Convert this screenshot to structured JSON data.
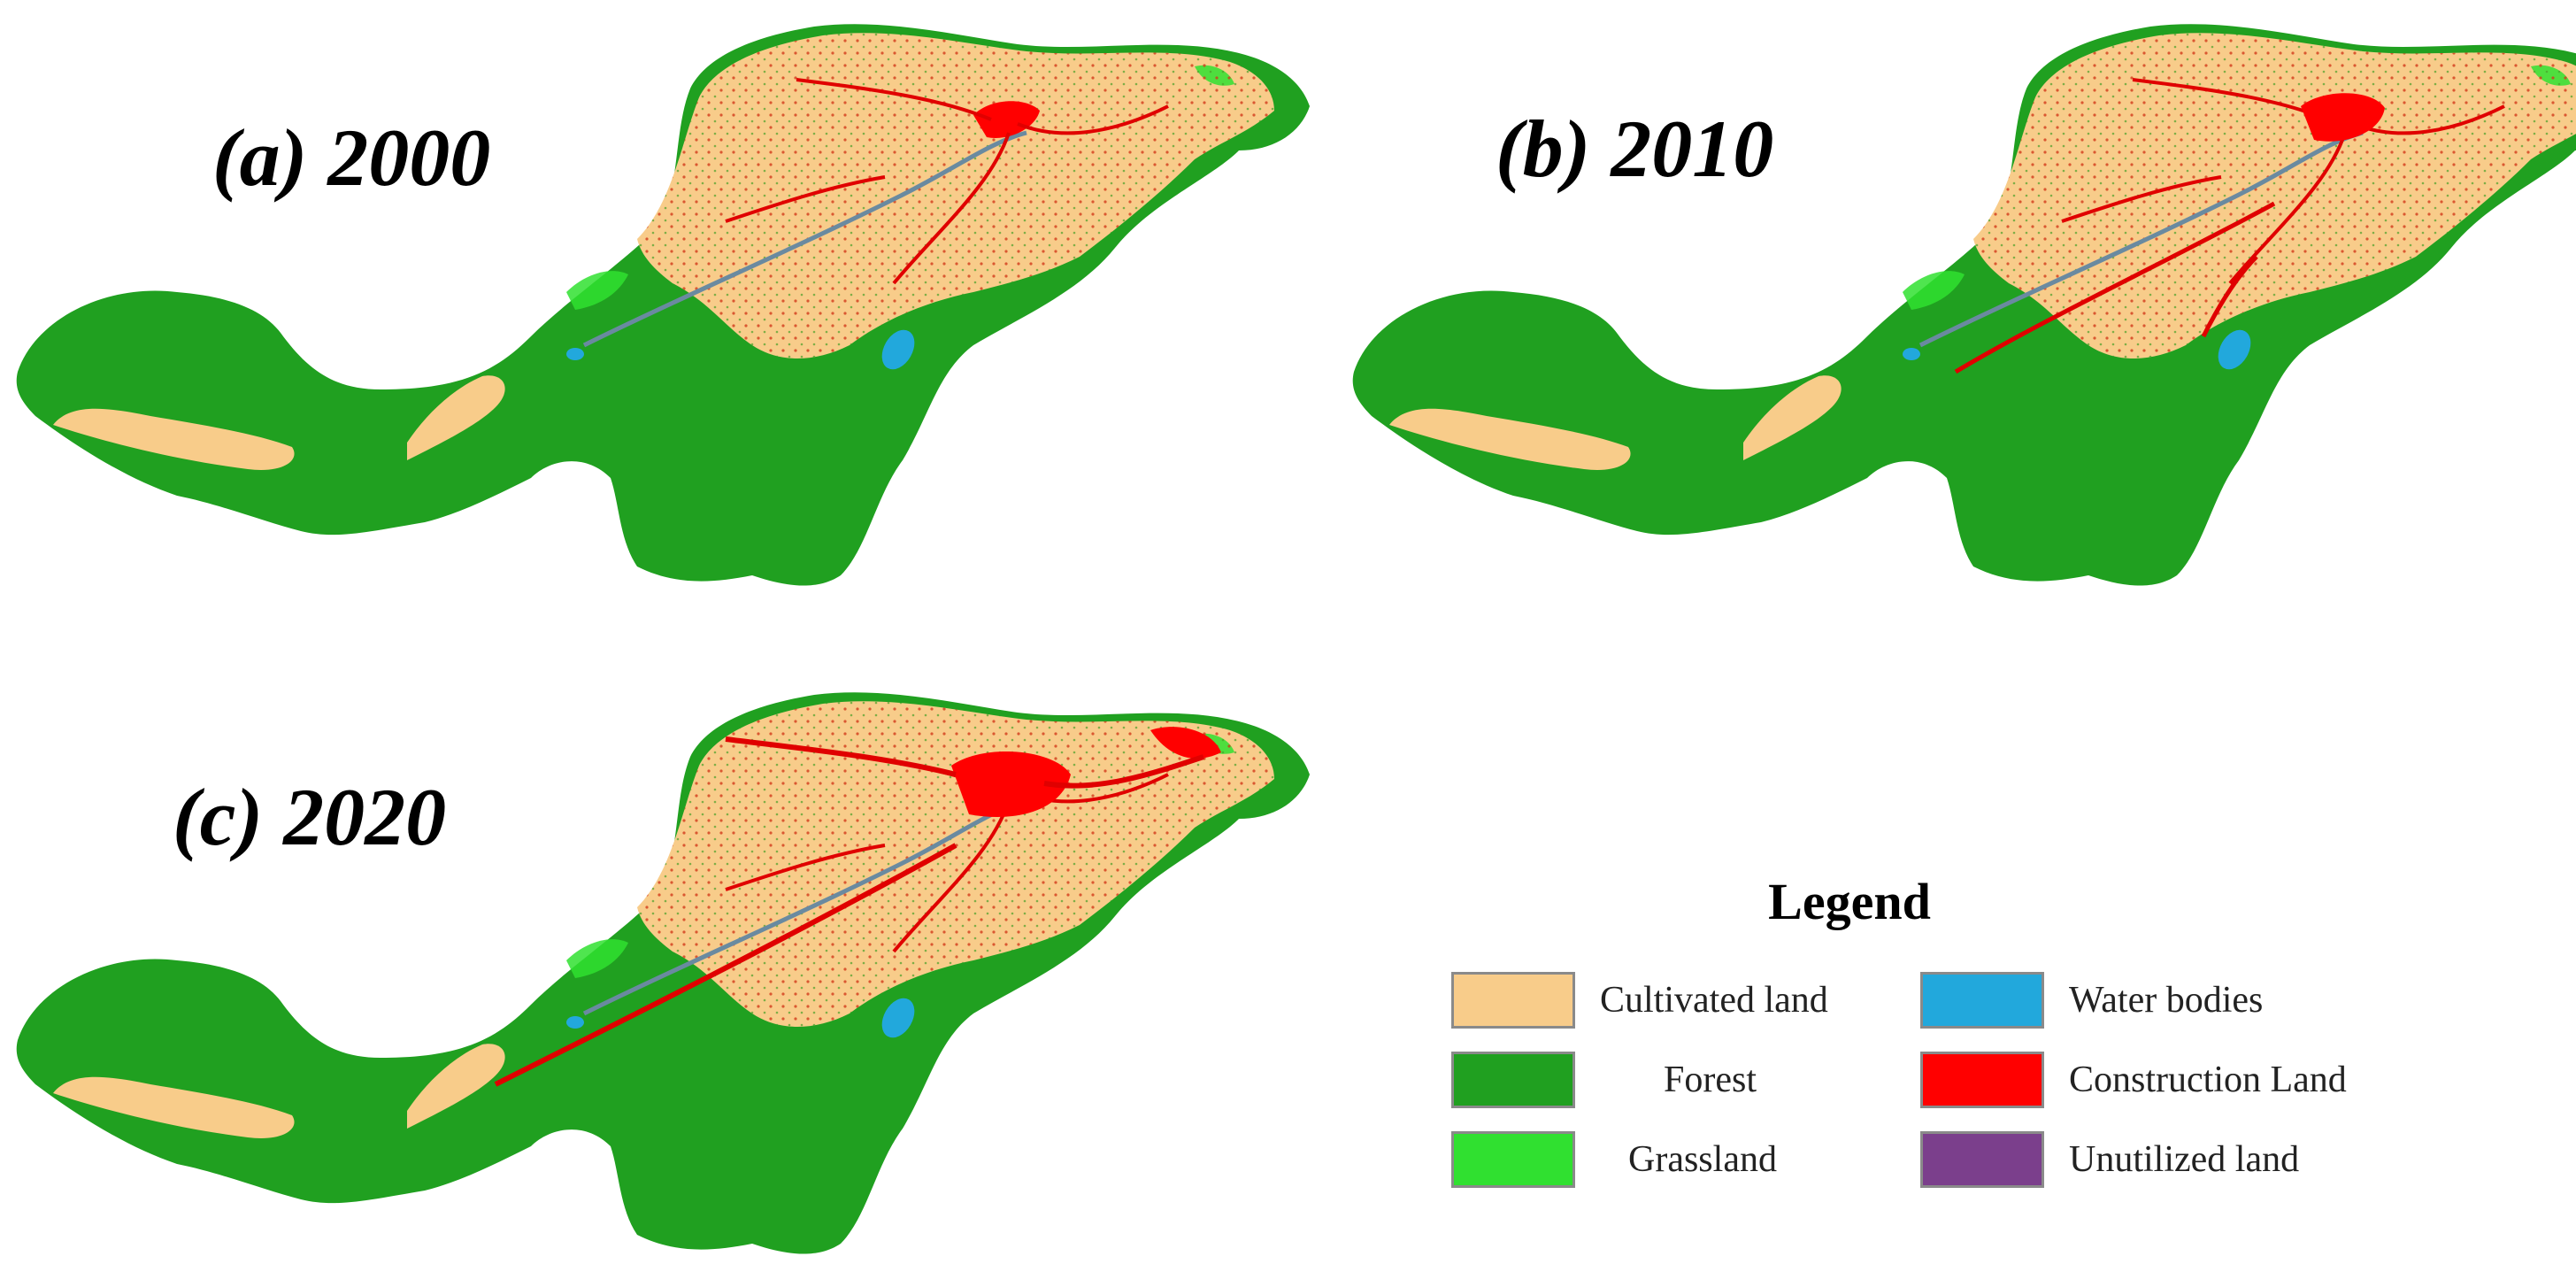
{
  "figure": {
    "panels": [
      {
        "id": "a",
        "label": "(a) 2000"
      },
      {
        "id": "b",
        "label": "(b) 2010"
      },
      {
        "id": "c",
        "label": "(c) 2020"
      }
    ],
    "legend": {
      "title": "Legend",
      "items": [
        {
          "label": "Cultivated land",
          "color": "#f8cc8a"
        },
        {
          "label": "Water bodies",
          "color": "#22a8dc"
        },
        {
          "label": "Forest",
          "color": "#20a020"
        },
        {
          "label": "Construction Land",
          "color": "#ff0000"
        },
        {
          "label": "Grassland",
          "color": "#30e030"
        },
        {
          "label": "Unutilized land",
          "color": "#7b3f8c"
        }
      ]
    }
  }
}
